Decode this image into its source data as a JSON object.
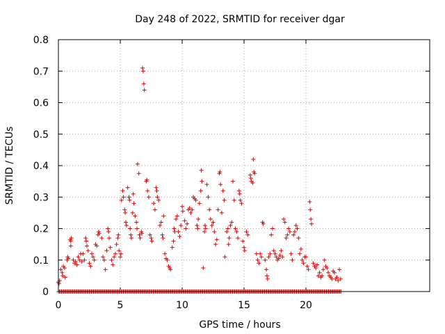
{
  "chart_data": {
    "type": "scatter",
    "title": "Day 248 of 2022, SRMTID for receiver dgar",
    "xlabel": "GPS time / hours",
    "ylabel": "SRMTID / TECUs",
    "xlim": [
      0,
      30
    ],
    "ylim": [
      0,
      0.8
    ],
    "xticks": [
      0,
      5,
      10,
      15,
      20
    ],
    "yticks": [
      0,
      0.1,
      0.2,
      0.3,
      0.4,
      0.5,
      0.6,
      0.7,
      0.8
    ],
    "ytick_labels": [
      "0",
      "0.1",
      "0.2",
      "0.3",
      "0.4",
      "0.5",
      "0.6",
      "0.7",
      "0.8"
    ],
    "grid": true,
    "marker": "plus",
    "color": "#e00000",
    "zero_line": {
      "x_start": 0,
      "x_end": 22.9,
      "step": 0.0833,
      "y": 0
    },
    "series": [
      {
        "name": "SRMTID",
        "points": [
          [
            0.0,
            0.03
          ],
          [
            0.05,
            0.025
          ],
          [
            0.1,
            0.035
          ],
          [
            0.2,
            0.07
          ],
          [
            0.3,
            0.06
          ],
          [
            0.35,
            0.05
          ],
          [
            0.4,
            0.08
          ],
          [
            0.5,
            0.075
          ],
          [
            0.55,
            0.045
          ],
          [
            0.7,
            0.1
          ],
          [
            0.75,
            0.11
          ],
          [
            0.8,
            0.105
          ],
          [
            0.95,
            0.165
          ],
          [
            1.0,
            0.16
          ],
          [
            1.05,
            0.17
          ],
          [
            1.0,
            0.145
          ],
          [
            1.2,
            0.1
          ],
          [
            1.3,
            0.09
          ],
          [
            1.4,
            0.095
          ],
          [
            1.5,
            0.085
          ],
          [
            1.6,
            0.11
          ],
          [
            1.7,
            0.1
          ],
          [
            1.8,
            0.12
          ],
          [
            1.9,
            0.095
          ],
          [
            2.0,
            0.12
          ],
          [
            2.1,
            0.1
          ],
          [
            2.2,
            0.17
          ],
          [
            2.25,
            0.16
          ],
          [
            2.3,
            0.145
          ],
          [
            2.4,
            0.13
          ],
          [
            2.5,
            0.09
          ],
          [
            2.6,
            0.08
          ],
          [
            2.7,
            0.12
          ],
          [
            2.8,
            0.11
          ],
          [
            2.9,
            0.1
          ],
          [
            3.0,
            0.15
          ],
          [
            3.1,
            0.145
          ],
          [
            3.2,
            0.18
          ],
          [
            3.25,
            0.19
          ],
          [
            3.3,
            0.185
          ],
          [
            3.5,
            0.17
          ],
          [
            3.6,
            0.11
          ],
          [
            3.7,
            0.1
          ],
          [
            3.8,
            0.07
          ],
          [
            3.9,
            0.13
          ],
          [
            4.0,
            0.2
          ],
          [
            4.05,
            0.19
          ],
          [
            4.1,
            0.17
          ],
          [
            4.2,
            0.14
          ],
          [
            4.3,
            0.1
          ],
          [
            4.4,
            0.085
          ],
          [
            4.5,
            0.11
          ],
          [
            4.6,
            0.12
          ],
          [
            4.7,
            0.15
          ],
          [
            4.8,
            0.17
          ],
          [
            4.85,
            0.18
          ],
          [
            4.9,
            0.13
          ],
          [
            5.0,
            0.11
          ],
          [
            5.05,
            0.12
          ],
          [
            5.1,
            0.29
          ],
          [
            5.2,
            0.32
          ],
          [
            5.25,
            0.3
          ],
          [
            5.35,
            0.26
          ],
          [
            5.4,
            0.25
          ],
          [
            5.45,
            0.22
          ],
          [
            5.5,
            0.21
          ],
          [
            5.6,
            0.33
          ],
          [
            5.7,
            0.3
          ],
          [
            5.75,
            0.29
          ],
          [
            5.8,
            0.2
          ],
          [
            5.85,
            0.18
          ],
          [
            5.9,
            0.17
          ],
          [
            6.0,
            0.25
          ],
          [
            6.05,
            0.31
          ],
          [
            6.1,
            0.28
          ],
          [
            6.2,
            0.24
          ],
          [
            6.3,
            0.22
          ],
          [
            6.35,
            0.2
          ],
          [
            6.4,
            0.405
          ],
          [
            6.5,
            0.375
          ],
          [
            6.55,
            0.18
          ],
          [
            6.6,
            0.17
          ],
          [
            6.7,
            0.19
          ],
          [
            6.75,
            0.185
          ],
          [
            6.8,
            0.71
          ],
          [
            6.85,
            0.7
          ],
          [
            6.9,
            0.66
          ],
          [
            6.95,
            0.64
          ],
          [
            7.1,
            0.35
          ],
          [
            7.15,
            0.355
          ],
          [
            7.2,
            0.32
          ],
          [
            7.3,
            0.3
          ],
          [
            7.4,
            0.18
          ],
          [
            7.5,
            0.17
          ],
          [
            7.55,
            0.16
          ],
          [
            7.7,
            0.28
          ],
          [
            7.8,
            0.26
          ],
          [
            7.9,
            0.33
          ],
          [
            7.95,
            0.32
          ],
          [
            8.0,
            0.3
          ],
          [
            8.1,
            0.29
          ],
          [
            8.2,
            0.21
          ],
          [
            8.3,
            0.22
          ],
          [
            8.4,
            0.18
          ],
          [
            8.45,
            0.17
          ],
          [
            8.5,
            0.24
          ],
          [
            8.6,
            0.12
          ],
          [
            8.7,
            0.105
          ],
          [
            8.8,
            0.1
          ],
          [
            8.9,
            0.08
          ],
          [
            9.0,
            0.075
          ],
          [
            9.05,
            0.07
          ],
          [
            9.2,
            0.14
          ],
          [
            9.3,
            0.16
          ],
          [
            9.35,
            0.2
          ],
          [
            9.4,
            0.19
          ],
          [
            9.5,
            0.23
          ],
          [
            9.6,
            0.24
          ],
          [
            9.7,
            0.19
          ],
          [
            9.8,
            0.175
          ],
          [
            9.9,
            0.21
          ],
          [
            10.0,
            0.27
          ],
          [
            10.05,
            0.255
          ],
          [
            10.2,
            0.225
          ],
          [
            10.3,
            0.2
          ],
          [
            10.4,
            0.215
          ],
          [
            10.5,
            0.26
          ],
          [
            10.6,
            0.265
          ],
          [
            10.7,
            0.25
          ],
          [
            10.8,
            0.26
          ],
          [
            10.9,
            0.3
          ],
          [
            11.0,
            0.295
          ],
          [
            11.1,
            0.29
          ],
          [
            11.2,
            0.21
          ],
          [
            11.25,
            0.2
          ],
          [
            11.3,
            0.23
          ],
          [
            11.4,
            0.28
          ],
          [
            11.5,
            0.32
          ],
          [
            11.55,
            0.385
          ],
          [
            11.6,
            0.35
          ],
          [
            11.7,
            0.075
          ],
          [
            11.8,
            0.19
          ],
          [
            11.85,
            0.21
          ],
          [
            11.9,
            0.2
          ],
          [
            12.0,
            0.34
          ],
          [
            12.1,
            0.3
          ],
          [
            12.2,
            0.26
          ],
          [
            12.3,
            0.23
          ],
          [
            12.4,
            0.21
          ],
          [
            12.5,
            0.22
          ],
          [
            12.6,
            0.19
          ],
          [
            12.7,
            0.15
          ],
          [
            12.8,
            0.165
          ],
          [
            12.9,
            0.26
          ],
          [
            13.0,
            0.375
          ],
          [
            13.05,
            0.38
          ],
          [
            13.1,
            0.34
          ],
          [
            13.2,
            0.25
          ],
          [
            13.3,
            0.32
          ],
          [
            13.4,
            0.29
          ],
          [
            13.45,
            0.11
          ],
          [
            13.6,
            0.19
          ],
          [
            13.7,
            0.2
          ],
          [
            13.75,
            0.15
          ],
          [
            13.8,
            0.17
          ],
          [
            13.9,
            0.21
          ],
          [
            14.0,
            0.22
          ],
          [
            14.1,
            0.35
          ],
          [
            14.2,
            0.29
          ],
          [
            14.3,
            0.2
          ],
          [
            14.4,
            0.19
          ],
          [
            14.5,
            0.17
          ],
          [
            14.6,
            0.32
          ],
          [
            14.65,
            0.31
          ],
          [
            14.7,
            0.29
          ],
          [
            14.8,
            0.28
          ],
          [
            14.9,
            0.16
          ],
          [
            15.0,
            0.14
          ],
          [
            15.05,
            0.13
          ],
          [
            15.2,
            0.19
          ],
          [
            15.3,
            0.18
          ],
          [
            15.5,
            0.37
          ],
          [
            15.55,
            0.36
          ],
          [
            15.6,
            0.35
          ],
          [
            15.7,
            0.345
          ],
          [
            15.75,
            0.42
          ],
          [
            15.8,
            0.38
          ],
          [
            15.85,
            0.375
          ],
          [
            16.0,
            0.12
          ],
          [
            16.1,
            0.1
          ],
          [
            16.2,
            0.09
          ],
          [
            16.3,
            0.12
          ],
          [
            16.4,
            0.11
          ],
          [
            16.5,
            0.22
          ],
          [
            16.55,
            0.215
          ],
          [
            16.7,
            0.1
          ],
          [
            16.8,
            0.07
          ],
          [
            16.85,
            0.05
          ],
          [
            16.9,
            0.04
          ],
          [
            17.0,
            0.11
          ],
          [
            17.1,
            0.12
          ],
          [
            17.2,
            0.18
          ],
          [
            17.3,
            0.2
          ],
          [
            17.4,
            0.13
          ],
          [
            17.5,
            0.12
          ],
          [
            17.6,
            0.11
          ],
          [
            17.7,
            0.1
          ],
          [
            17.8,
            0.105
          ],
          [
            17.9,
            0.115
          ],
          [
            18.0,
            0.13
          ],
          [
            18.1,
            0.11
          ],
          [
            18.2,
            0.23
          ],
          [
            18.3,
            0.22
          ],
          [
            18.4,
            0.17
          ],
          [
            18.5,
            0.18
          ],
          [
            18.6,
            0.2
          ],
          [
            18.7,
            0.19
          ],
          [
            18.8,
            0.12
          ],
          [
            18.9,
            0.1
          ],
          [
            19.0,
            0.18
          ],
          [
            19.1,
            0.19
          ],
          [
            19.2,
            0.21
          ],
          [
            19.3,
            0.2
          ],
          [
            19.4,
            0.17
          ],
          [
            19.5,
            0.12
          ],
          [
            19.6,
            0.135
          ],
          [
            19.7,
            0.1
          ],
          [
            19.8,
            0.09
          ],
          [
            19.9,
            0.11
          ],
          [
            20.0,
            0.11
          ],
          [
            20.1,
            0.08
          ],
          [
            20.2,
            0.07
          ],
          [
            20.3,
            0.285
          ],
          [
            20.35,
            0.26
          ],
          [
            20.4,
            0.23
          ],
          [
            20.45,
            0.215
          ],
          [
            20.6,
            0.09
          ],
          [
            20.7,
            0.08
          ],
          [
            20.8,
            0.075
          ],
          [
            20.9,
            0.085
          ],
          [
            21.0,
            0.05
          ],
          [
            21.1,
            0.06
          ],
          [
            21.2,
            0.045
          ],
          [
            21.3,
            0.05
          ],
          [
            21.4,
            0.07
          ],
          [
            21.5,
            0.1
          ],
          [
            21.6,
            0.08
          ],
          [
            21.7,
            0.075
          ],
          [
            21.8,
            0.06
          ],
          [
            21.9,
            0.05
          ],
          [
            22.0,
            0.045
          ],
          [
            22.1,
            0.04
          ],
          [
            22.2,
            0.065
          ],
          [
            22.3,
            0.06
          ],
          [
            22.4,
            0.04
          ],
          [
            22.5,
            0.045
          ],
          [
            22.6,
            0.035
          ],
          [
            22.7,
            0.07
          ],
          [
            22.8,
            0.04
          ]
        ]
      }
    ]
  }
}
